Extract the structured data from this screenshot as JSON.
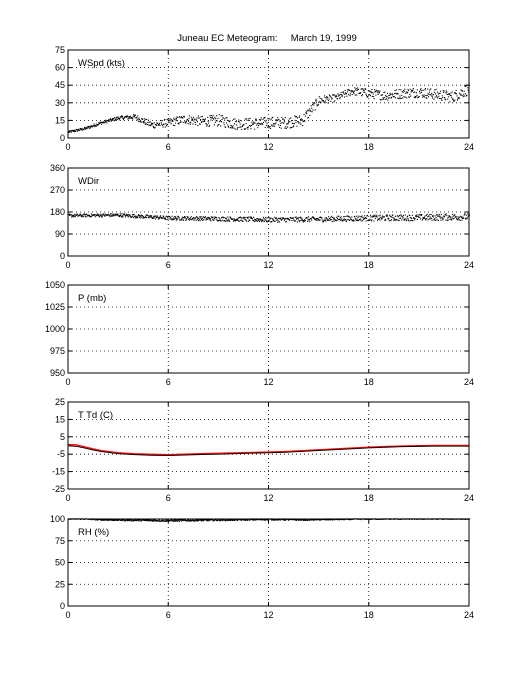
{
  "title": "Juneau EC Meteogram:     March 19, 1999",
  "chart_data": [
    {
      "type": "scatter",
      "label": "WSpd (kts)",
      "xlim": [
        0,
        24
      ],
      "ylim": [
        0,
        75
      ],
      "xticks": [
        0,
        6,
        12,
        18,
        24
      ],
      "yticks": [
        0,
        15,
        30,
        45,
        60,
        75
      ],
      "grid": true,
      "series": [
        {
          "color": "#000000",
          "profile": [
            [
              0,
              5
            ],
            [
              1,
              8
            ],
            [
              2,
              13
            ],
            [
              3,
              17
            ],
            [
              4,
              18
            ],
            [
              4.4,
              15
            ],
            [
              5,
              11
            ],
            [
              6,
              13
            ],
            [
              7,
              16
            ],
            [
              8,
              14
            ],
            [
              9,
              15
            ],
            [
              10,
              12
            ],
            [
              11,
              12
            ],
            [
              12,
              13
            ],
            [
              13,
              13
            ],
            [
              14,
              15
            ],
            [
              15,
              32
            ],
            [
              16,
              34
            ],
            [
              17,
              40
            ],
            [
              18,
              38
            ],
            [
              19,
              36
            ],
            [
              20,
              38
            ],
            [
              21,
              39
            ],
            [
              22,
              37
            ],
            [
              23,
              35
            ],
            [
              24,
              42
            ]
          ],
          "spread": [
            [
              0,
              1
            ],
            [
              3,
              1.5
            ],
            [
              5,
              3
            ],
            [
              9,
              5
            ],
            [
              14,
              5
            ],
            [
              16,
              3
            ],
            [
              18,
              4
            ],
            [
              24,
              5
            ]
          ]
        }
      ]
    },
    {
      "type": "scatter",
      "label": "WDir",
      "xlim": [
        0,
        24
      ],
      "ylim": [
        0,
        360
      ],
      "xticks": [
        0,
        6,
        12,
        18,
        24
      ],
      "yticks": [
        0,
        90,
        180,
        270,
        360
      ],
      "grid": true,
      "series": [
        {
          "color": "#000000",
          "profile": [
            [
              0,
              165
            ],
            [
              3,
              167
            ],
            [
              6,
              155
            ],
            [
              9,
              152
            ],
            [
              12,
              148
            ],
            [
              15,
              150
            ],
            [
              18,
              155
            ],
            [
              21,
              157
            ],
            [
              24,
              160
            ]
          ],
          "spread": [
            [
              0,
              6
            ],
            [
              6,
              8
            ],
            [
              12,
              10
            ],
            [
              18,
              12
            ],
            [
              24,
              14
            ]
          ]
        }
      ]
    },
    {
      "type": "line",
      "label": "P (mb)",
      "xlim": [
        0,
        24
      ],
      "ylim": [
        950,
        1050
      ],
      "xticks": [
        0,
        6,
        12,
        18,
        24
      ],
      "yticks": [
        950,
        975,
        1000,
        1025,
        1050
      ],
      "grid": true,
      "series": []
    },
    {
      "type": "line",
      "label": "T Td (C)",
      "xlim": [
        0,
        24
      ],
      "ylim": [
        -25,
        25
      ],
      "xticks": [
        0,
        6,
        12,
        18,
        24
      ],
      "yticks": [
        -25,
        -15,
        -5,
        5,
        15,
        25
      ],
      "grid": true,
      "series": [
        {
          "color": "#ff0000",
          "x": [
            0,
            0.5,
            1,
            1.5,
            2,
            3,
            4,
            5,
            6,
            7,
            8,
            9,
            10,
            11,
            12,
            13,
            14,
            15,
            16,
            17,
            18,
            19,
            20,
            21,
            22,
            23,
            24
          ],
          "values": [
            0.5,
            0.3,
            -0.8,
            -2.0,
            -3.0,
            -4.2,
            -4.8,
            -5.1,
            -5.3,
            -5.0,
            -4.7,
            -4.5,
            -4.3,
            -4.0,
            -3.8,
            -3.5,
            -3.0,
            -2.5,
            -2.0,
            -1.5,
            -1.0,
            -0.6,
            -0.3,
            -0.1,
            0.0,
            0.0,
            0.0
          ]
        },
        {
          "color": "#000000",
          "x": [
            0,
            0.5,
            1,
            1.5,
            2,
            3,
            4,
            5,
            6,
            7,
            8,
            9,
            10,
            11,
            12,
            13,
            14,
            15,
            16,
            17,
            18,
            19,
            20,
            21,
            22,
            23,
            24
          ],
          "values": [
            -0.2,
            -0.5,
            -1.5,
            -2.6,
            -3.5,
            -4.7,
            -5.3,
            -5.6,
            -5.8,
            -5.5,
            -5.2,
            -5.0,
            -4.7,
            -4.4,
            -4.2,
            -3.9,
            -3.4,
            -2.9,
            -2.4,
            -1.9,
            -1.4,
            -1.0,
            -0.7,
            -0.5,
            -0.4,
            -0.4,
            -0.4
          ]
        }
      ]
    },
    {
      "type": "scatter",
      "label": "RH (%)",
      "xlim": [
        0,
        24
      ],
      "ylim": [
        0,
        100
      ],
      "xticks": [
        0,
        6,
        12,
        18,
        24
      ],
      "yticks": [
        0,
        25,
        50,
        75,
        100
      ],
      "grid": true,
      "series": [
        {
          "color": "#000000",
          "profile": [
            [
              0,
              100
            ],
            [
              1,
              100
            ],
            [
              2,
              99
            ],
            [
              4,
              98.5
            ],
            [
              6,
              98
            ],
            [
              8,
              98.5
            ],
            [
              10,
              99
            ],
            [
              12,
              99.5
            ],
            [
              14,
              99
            ],
            [
              16,
              99.5
            ],
            [
              18,
              100
            ],
            [
              24,
              100
            ]
          ],
          "spread": [
            [
              0,
              0.5
            ],
            [
              6,
              1
            ],
            [
              12,
              0.8
            ],
            [
              24,
              0.5
            ]
          ]
        }
      ]
    }
  ]
}
